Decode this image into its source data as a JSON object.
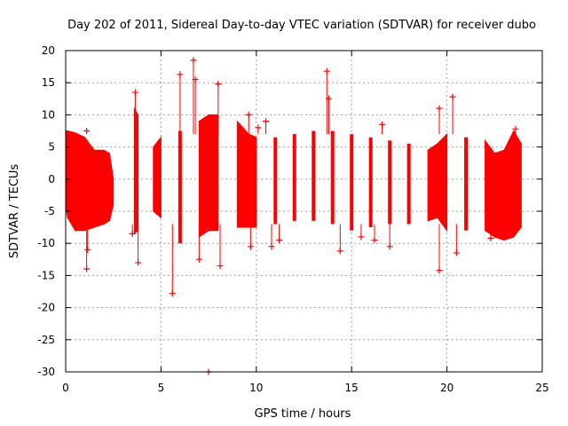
{
  "chart_data": {
    "type": "scatter",
    "title": "Day 202 of 2011, Sidereal Day-to-day VTEC variation (SDTVAR) for receiver dubo",
    "xlabel": "GPS time / hours",
    "ylabel": "SDTVAR / TECUs",
    "xlim": [
      0,
      25
    ],
    "ylim": [
      -30,
      20
    ],
    "xticks": [
      0,
      5,
      10,
      15,
      20,
      25
    ],
    "yticks": [
      -30,
      -25,
      -20,
      -15,
      -10,
      -5,
      0,
      5,
      10,
      15,
      20
    ],
    "grid": true,
    "marker": "+",
    "color": "#ff0000",
    "series": [
      {
        "name": "SDTVAR",
        "envelope": [
          {
            "x": 0.0,
            "lo": -4.0,
            "hi": 7.5
          },
          {
            "x": 0.1,
            "lo": -6.0,
            "hi": 7.5
          },
          {
            "x": 0.5,
            "lo": -8.0,
            "hi": 7.2
          },
          {
            "x": 1.0,
            "lo": -8.0,
            "hi": 6.5
          },
          {
            "x": 1.5,
            "lo": -7.5,
            "hi": 4.5
          },
          {
            "x": 2.0,
            "lo": -7.0,
            "hi": 4.5
          },
          {
            "x": 2.3,
            "lo": -6.5,
            "hi": 4.0
          },
          {
            "x": 2.5,
            "lo": -4.0,
            "hi": 0.0
          },
          {
            "x": 3.6,
            "lo": -8.5,
            "hi": 11.0
          },
          {
            "x": 3.8,
            "lo": -8.0,
            "hi": 10.0
          },
          {
            "x": 4.6,
            "lo": -5.0,
            "hi": 5.0
          },
          {
            "x": 5.0,
            "lo": -6.0,
            "hi": 6.5
          },
          {
            "x": 6.0,
            "lo": -10.0,
            "hi": 7.5
          },
          {
            "x": 7.0,
            "lo": -9.0,
            "hi": 9.0
          },
          {
            "x": 7.5,
            "lo": -8.0,
            "hi": 10.0
          },
          {
            "x": 8.0,
            "lo": -8.0,
            "hi": 10.0
          },
          {
            "x": 9.0,
            "lo": -7.5,
            "hi": 9.0
          },
          {
            "x": 9.6,
            "lo": -7.5,
            "hi": 7.0
          },
          {
            "x": 10.0,
            "lo": -7.5,
            "hi": 6.5
          },
          {
            "x": 11.0,
            "lo": -7.0,
            "hi": 6.5
          },
          {
            "x": 12.0,
            "lo": -6.5,
            "hi": 7.0
          },
          {
            "x": 13.0,
            "lo": -6.5,
            "hi": 7.5
          },
          {
            "x": 14.0,
            "lo": -7.0,
            "hi": 7.5
          },
          {
            "x": 15.0,
            "lo": -8.0,
            "hi": 7.0
          },
          {
            "x": 16.0,
            "lo": -7.5,
            "hi": 6.5
          },
          {
            "x": 17.0,
            "lo": -7.0,
            "hi": 6.0
          },
          {
            "x": 18.0,
            "lo": -7.0,
            "hi": 5.5
          },
          {
            "x": 19.0,
            "lo": -6.5,
            "hi": 4.5
          },
          {
            "x": 19.5,
            "lo": -6.0,
            "hi": 5.5
          },
          {
            "x": 20.0,
            "lo": -8.0,
            "hi": 7.0
          },
          {
            "x": 21.0,
            "lo": -8.0,
            "hi": 6.5
          },
          {
            "x": 22.0,
            "lo": -8.0,
            "hi": 6.0
          },
          {
            "x": 22.5,
            "lo": -9.0,
            "hi": 4.0
          },
          {
            "x": 23.0,
            "lo": -9.5,
            "hi": 4.5
          },
          {
            "x": 23.5,
            "lo": -9.0,
            "hi": 7.5
          },
          {
            "x": 23.9,
            "lo": -7.5,
            "hi": 5.5
          }
        ],
        "outliers": [
          {
            "x": 1.1,
            "y": 7.5
          },
          {
            "x": 1.1,
            "y": -14.0
          },
          {
            "x": 1.15,
            "y": -11.0
          },
          {
            "x": 3.5,
            "y": -8.5
          },
          {
            "x": 3.65,
            "y": 13.5
          },
          {
            "x": 3.8,
            "y": -13.0
          },
          {
            "x": 5.6,
            "y": -17.8
          },
          {
            "x": 6.0,
            "y": 16.3
          },
          {
            "x": 6.7,
            "y": 18.5
          },
          {
            "x": 6.8,
            "y": 15.5
          },
          {
            "x": 7.0,
            "y": -12.5
          },
          {
            "x": 7.5,
            "y": -30.0
          },
          {
            "x": 8.0,
            "y": 14.8
          },
          {
            "x": 8.1,
            "y": -13.5
          },
          {
            "x": 9.6,
            "y": 10.0
          },
          {
            "x": 9.7,
            "y": -10.5
          },
          {
            "x": 10.1,
            "y": 8.0
          },
          {
            "x": 10.5,
            "y": 9.0
          },
          {
            "x": 10.8,
            "y": -10.5
          },
          {
            "x": 11.2,
            "y": -9.5
          },
          {
            "x": 13.7,
            "y": 16.8
          },
          {
            "x": 13.8,
            "y": 12.5
          },
          {
            "x": 14.4,
            "y": -11.2
          },
          {
            "x": 15.5,
            "y": -9.0
          },
          {
            "x": 16.2,
            "y": -9.5
          },
          {
            "x": 16.6,
            "y": 8.5
          },
          {
            "x": 17.0,
            "y": -10.5
          },
          {
            "x": 19.6,
            "y": -14.2
          },
          {
            "x": 19.6,
            "y": 11.0
          },
          {
            "x": 20.3,
            "y": 12.8
          },
          {
            "x": 20.5,
            "y": -11.5
          },
          {
            "x": 22.3,
            "y": -9.2
          },
          {
            "x": 23.6,
            "y": 7.8
          }
        ]
      }
    ]
  }
}
